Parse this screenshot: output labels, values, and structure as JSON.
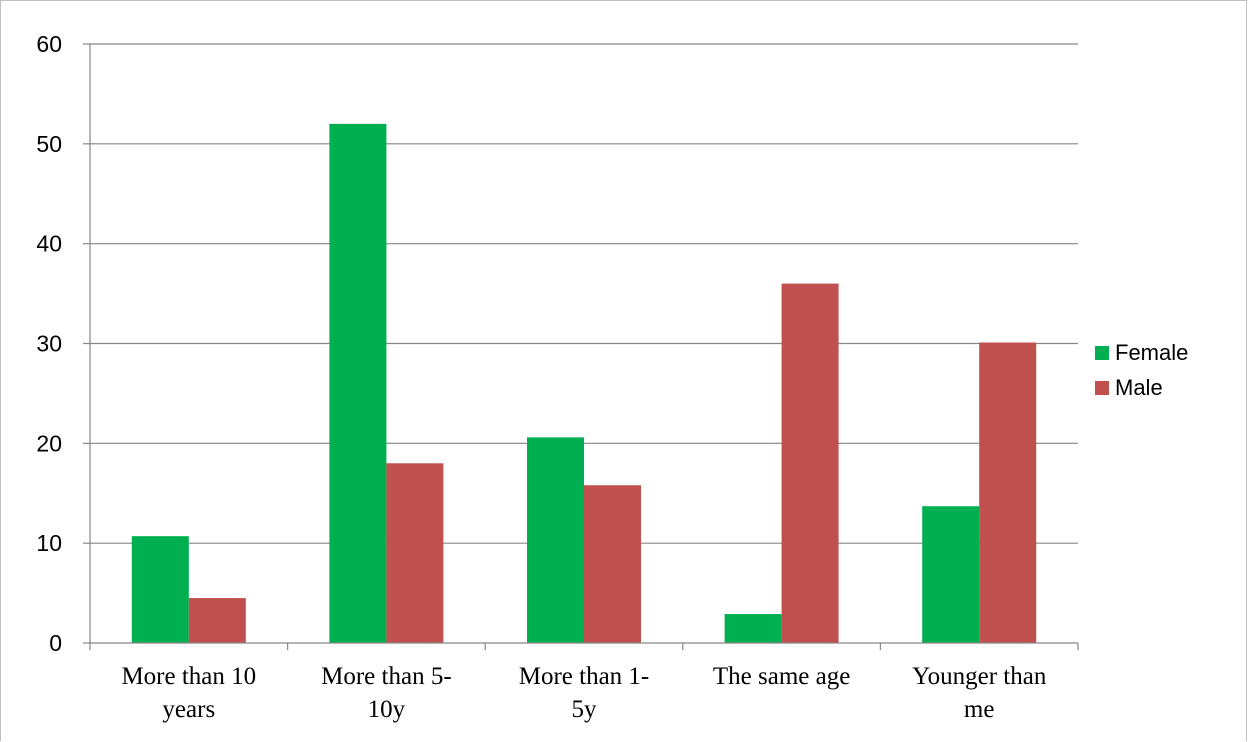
{
  "chart_data": {
    "type": "bar",
    "title": "",
    "xlabel": "",
    "ylabel": "",
    "categories": [
      [
        "More than 10",
        "years"
      ],
      [
        "More than 5-",
        "10y"
      ],
      [
        "More than 1-",
        "5y"
      ],
      [
        "The same age"
      ],
      [
        "Younger than",
        "me"
      ]
    ],
    "series": [
      {
        "name": "Female",
        "color": "#00b050",
        "values": [
          10.7,
          52,
          20.6,
          2.9,
          13.7
        ]
      },
      {
        "name": "Male",
        "color": "#c0504d",
        "values": [
          4.5,
          18,
          15.8,
          36,
          30.1
        ]
      }
    ],
    "ylim": [
      0,
      60
    ],
    "yticks": [
      0,
      10,
      20,
      30,
      40,
      50,
      60
    ],
    "grid": true,
    "legend": "right"
  }
}
